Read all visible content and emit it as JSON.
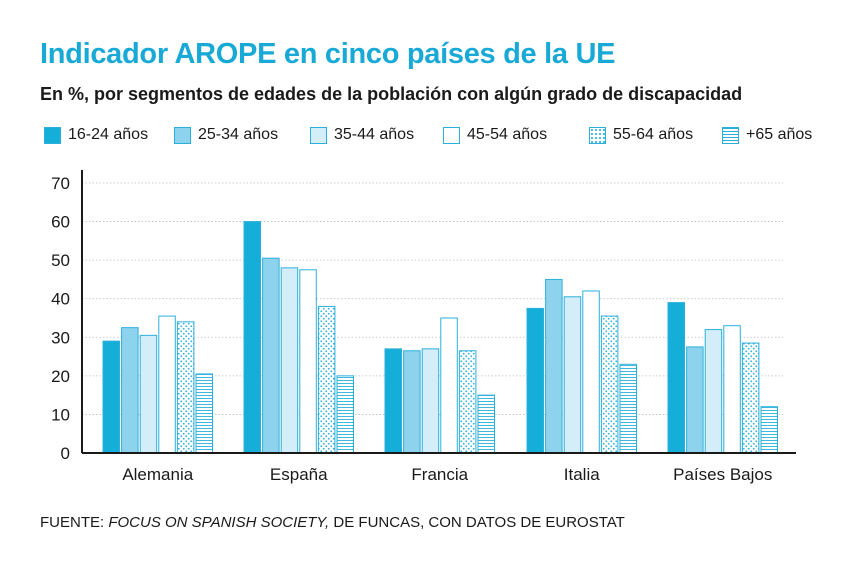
{
  "title": "Indicador AROPE en cinco países de la UE",
  "subtitle": "En %, por segmentos de edades de la población con algún grado de discapacidad",
  "source": {
    "prefix": "FUENTE: ",
    "italic": "FOCUS ON SPANISH SOCIETY,",
    "suffix": " DE FUNCAS, CON DATOS DE EUROSTAT"
  },
  "colors": {
    "title": "#18a9d6",
    "border": "#2bb0dc",
    "gridline": "#bdbdbd",
    "axis": "#1a1a1a"
  },
  "chart_data": {
    "type": "bar",
    "title": "Indicador AROPE en cinco países de la UE",
    "subtitle": "En %, por segmentos de edades de la población con algún grado de discapacidad",
    "xlabel": "",
    "ylabel": "",
    "ylim": [
      0,
      70
    ],
    "yticks": [
      0,
      10,
      20,
      30,
      40,
      50,
      60,
      70
    ],
    "grid": true,
    "legend_position": "top",
    "categories": [
      "Alemania",
      "España",
      "Francia",
      "Italia",
      "Países Bajos"
    ],
    "series": [
      {
        "name": "16-24 años",
        "fill": "#14aed9",
        "pattern": "solid",
        "values": [
          29,
          60,
          27,
          37.5,
          39
        ]
      },
      {
        "name": "25-34 años",
        "fill": "#8dd3ee",
        "pattern": "solid",
        "values": [
          32.5,
          50.5,
          26.5,
          45,
          27.5
        ]
      },
      {
        "name": "35-44 años",
        "fill": "#d4eef9",
        "pattern": "solid",
        "values": [
          30.5,
          48,
          27,
          40.5,
          32
        ]
      },
      {
        "name": "45-54 años",
        "fill": "#ffffff",
        "pattern": "solid",
        "values": [
          35.5,
          47.5,
          35,
          42,
          33
        ]
      },
      {
        "name": "55-64 años",
        "fill": "#ffffff",
        "pattern": "dots",
        "values": [
          34,
          38,
          26.5,
          35.5,
          28.5
        ]
      },
      {
        "name": "+65 años",
        "fill": "#ffffff",
        "pattern": "lines",
        "values": [
          20.5,
          20,
          15,
          23,
          12
        ]
      }
    ]
  }
}
